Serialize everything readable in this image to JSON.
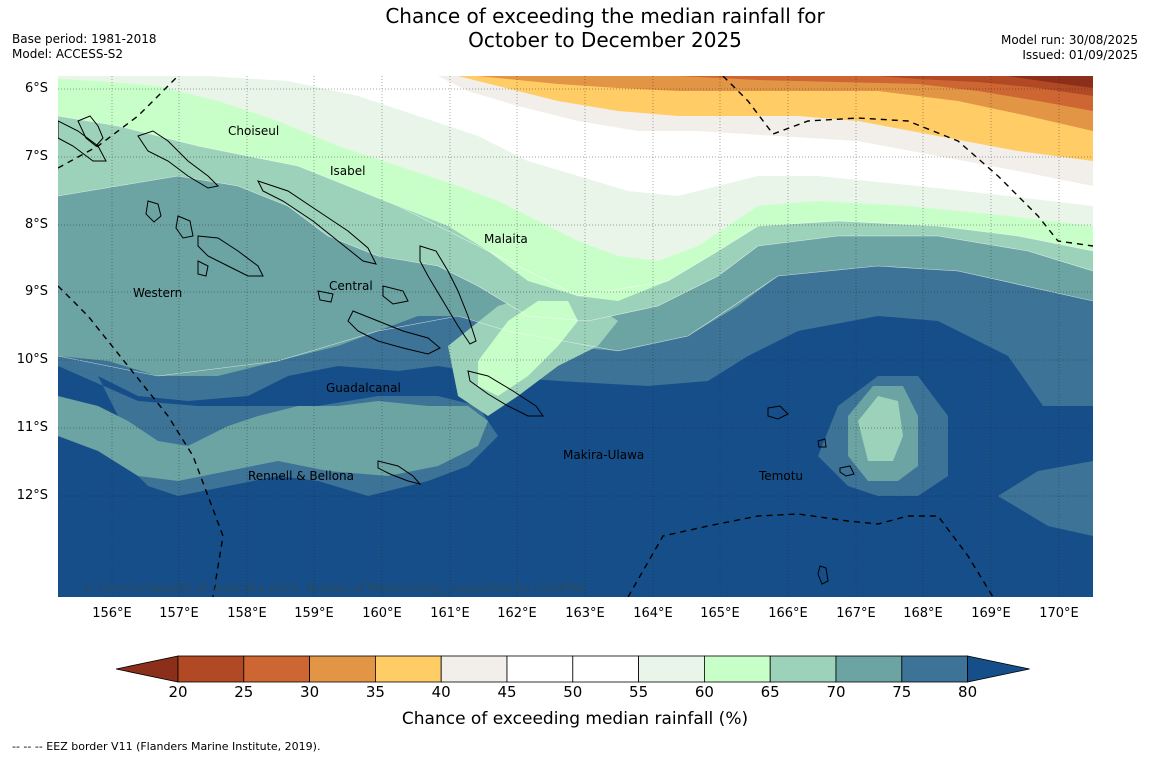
{
  "title_line1": "Chance of exceeding the median rainfall for",
  "title_line2": "October to December 2025",
  "base_period": "Base period: 1981-2018",
  "model": "Model: ACCESS-S2",
  "model_run": "Model run: 30/08/2025",
  "issued": "Issued: 01/09/2025",
  "lat_labels": [
    "6°S",
    "7°S",
    "8°S",
    "9°S",
    "10°S",
    "11°S",
    "12°S"
  ],
  "lon_labels": [
    "156°E",
    "157°E",
    "158°E",
    "159°E",
    "160°E",
    "161°E",
    "162°E",
    "163°E",
    "164°E",
    "165°E",
    "166°E",
    "167°E",
    "168°E",
    "169°E",
    "170°E"
  ],
  "regions": {
    "choiseul": "Choiseul",
    "isabel": "Isabel",
    "malaita": "Malaita",
    "western": "Western",
    "central": "Central",
    "guadalcanal": "Guadalcanal",
    "rennell": "Rennell & Bellona",
    "makira": "Makira-Ulawa",
    "temotu": "Temotu"
  },
  "copyright": "© Commonwealth of Australia 2025, Bureau of Meteorology, supported by COSPPac",
  "colorbar": {
    "title": "Chance of exceeding median rainfall (%)",
    "ticks": [
      "20",
      "25",
      "30",
      "35",
      "40",
      "45",
      "50",
      "55",
      "60",
      "65",
      "70",
      "75",
      "80"
    ],
    "colors": [
      "#8b2e1a",
      "#b14a24",
      "#cd6632",
      "#e29545",
      "#ffcc66",
      "#f2eee9",
      "#ffffff",
      "#ffffff",
      "#e8f5e8",
      "#c8ffc8",
      "#9cd1ba",
      "#6ca3a3",
      "#3d7396",
      "#164e89"
    ]
  },
  "eez_note": "-- -- -- EEZ border V11 (Flanders Marine Institute, 2019)."
}
